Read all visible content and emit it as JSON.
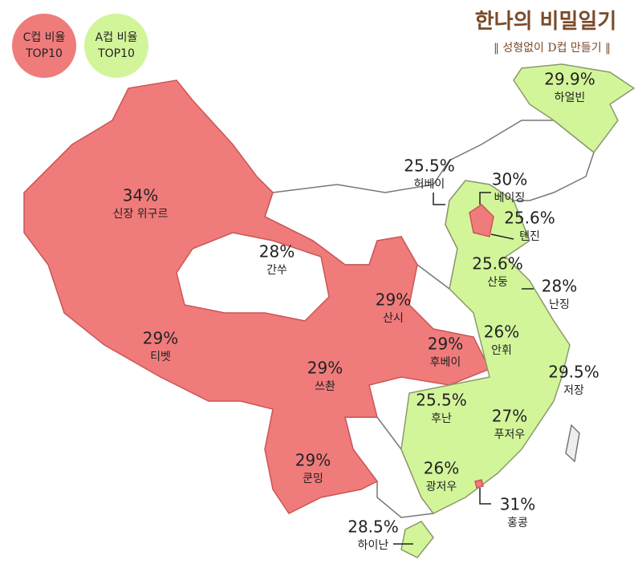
{
  "brand": {
    "title": "한나의 비밀일기",
    "subtitle": "‖ 성형없이 D컵 만들기 ‖"
  },
  "legend": [
    {
      "line1": "C컵 비율",
      "line2": "TOP10"
    },
    {
      "line1": "A컵 비율",
      "line2": "TOP10"
    }
  ],
  "regions": [
    {
      "value": "34%",
      "name": "신장 위구르"
    },
    {
      "value": "28%",
      "name": "간쑤"
    },
    {
      "value": "29%",
      "name": "티벳"
    },
    {
      "value": "29%",
      "name": "쓰촨"
    },
    {
      "value": "29%",
      "name": "쿤밍"
    },
    {
      "value": "29%",
      "name": "산시"
    },
    {
      "value": "29%",
      "name": "후베이"
    },
    {
      "value": "30%",
      "name": "베이징"
    },
    {
      "value": "31%",
      "name": "홍콩"
    },
    {
      "value": "29.9%",
      "name": "하얼빈"
    },
    {
      "value": "25.5%",
      "name": "허베이"
    },
    {
      "value": "25.6%",
      "name": "톈진"
    },
    {
      "value": "25.6%",
      "name": "산둥"
    },
    {
      "value": "28%",
      "name": "난징"
    },
    {
      "value": "26%",
      "name": "안휘"
    },
    {
      "value": "29.5%",
      "name": "저장"
    },
    {
      "value": "25.5%",
      "name": "후난"
    },
    {
      "value": "27%",
      "name": "푸저우"
    },
    {
      "value": "26%",
      "name": "광저우"
    },
    {
      "value": "28.5%",
      "name": "하이난"
    }
  ]
}
